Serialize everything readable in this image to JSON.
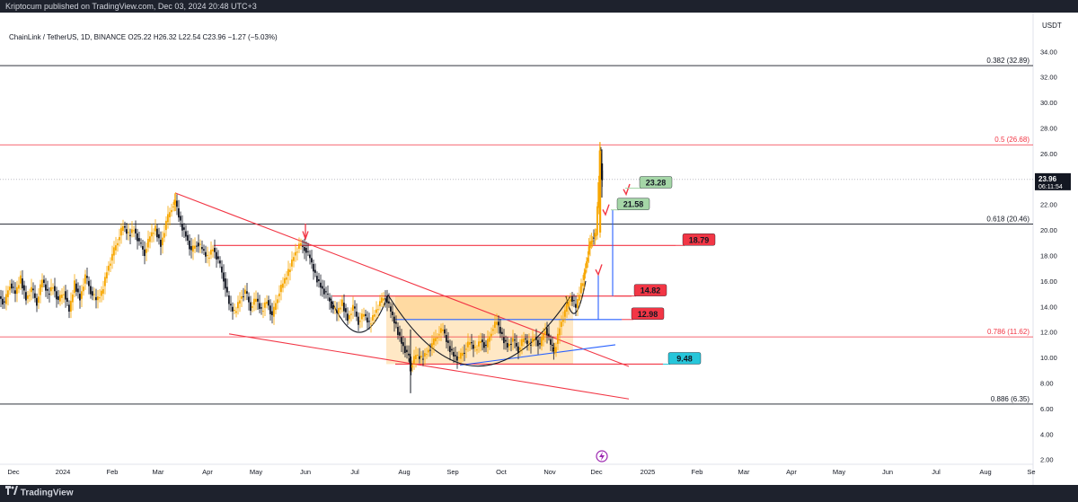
{
  "header": {
    "publish_line": "Kriptocum published on TradingView.com, Dec 03, 2024 20:48 UTC+3"
  },
  "footer": {
    "brand": "TradingView"
  },
  "chart_data": {
    "type": "candlestick",
    "symbol_line": "ChainLink / TetherUS, 1D, BINANCE O25.22 H26.32 L22.54 C23.96 −1.27 (−5.03%)",
    "ohlc": {
      "open": 25.22,
      "high": 26.32,
      "low": 22.54,
      "close": 23.96,
      "change": -1.27,
      "change_pct": -5.03
    },
    "currency": "USDT",
    "last_price": "23.96",
    "countdown": "06:11:54",
    "ylim": [
      2,
      34
    ],
    "y_ticks": [
      "34.00",
      "32.00",
      "30.00",
      "28.00",
      "26.00",
      "24.00",
      "22.00",
      "20.00",
      "18.00",
      "16.00",
      "14.00",
      "12.00",
      "10.00",
      "8.00",
      "6.00",
      "4.00",
      "2.00"
    ],
    "x_ticks": [
      "Dec",
      "2024",
      "Feb",
      "Mar",
      "Apr",
      "May",
      "Jun",
      "Jul",
      "Aug",
      "Sep",
      "Oct",
      "Nov",
      "Dec",
      "2025",
      "Feb",
      "Mar",
      "Apr",
      "May",
      "Jun",
      "Jul",
      "Aug",
      "Se"
    ],
    "fib_levels": [
      {
        "label": "0.382 (32.89)",
        "value": 32.89,
        "color": "#131722"
      },
      {
        "label": "0.5 (26.68)",
        "value": 26.68,
        "color": "#f23645"
      },
      {
        "label": "0.618 (20.46)",
        "value": 20.46,
        "color": "#131722"
      },
      {
        "label": "0.786 (11.62)",
        "value": 11.62,
        "color": "#f23645"
      },
      {
        "label": "0.886 (6.35)",
        "value": 6.35,
        "color": "#131722"
      }
    ],
    "price_labels": [
      {
        "text": "23.28",
        "value": 23.28,
        "color": "#a5d6a7"
      },
      {
        "text": "21.58",
        "value": 21.58,
        "color": "#a5d6a7"
      },
      {
        "text": "18.79",
        "value": 18.79,
        "color": "#f23645"
      },
      {
        "text": "14.82",
        "value": 14.82,
        "color": "#f23645"
      },
      {
        "text": "12.98",
        "value": 12.98,
        "color": "#f23645"
      },
      {
        "text": "9.48",
        "value": 9.48,
        "color": "#26c6da"
      }
    ],
    "price_path": [
      [
        0,
        14.8
      ],
      [
        6,
        14.2
      ],
      [
        12,
        15.8
      ],
      [
        18,
        15.0
      ],
      [
        24,
        16.2
      ],
      [
        30,
        14.6
      ],
      [
        36,
        15.4
      ],
      [
        42,
        14.3
      ],
      [
        48,
        16.1
      ],
      [
        54,
        15.0
      ],
      [
        60,
        15.6
      ],
      [
        66,
        14.4
      ],
      [
        72,
        15.2
      ],
      [
        78,
        13.6
      ],
      [
        84,
        15.8
      ],
      [
        90,
        14.6
      ],
      [
        96,
        16.4
      ],
      [
        102,
        15.2
      ],
      [
        108,
        14.5
      ],
      [
        114,
        15.0
      ],
      [
        120,
        16.8
      ],
      [
        126,
        18.0
      ],
      [
        132,
        19.2
      ],
      [
        138,
        20.3
      ],
      [
        144,
        19.6
      ],
      [
        150,
        20.1
      ],
      [
        156,
        19.0
      ],
      [
        162,
        18.2
      ],
      [
        168,
        19.5
      ],
      [
        174,
        20.1
      ],
      [
        180,
        18.8
      ],
      [
        186,
        20.6
      ],
      [
        192,
        21.8
      ],
      [
        196,
        22.3
      ],
      [
        202,
        20.5
      ],
      [
        208,
        19.6
      ],
      [
        214,
        18.3
      ],
      [
        220,
        19.0
      ],
      [
        226,
        18.5
      ],
      [
        232,
        17.8
      ],
      [
        238,
        18.6
      ],
      [
        244,
        17.6
      ],
      [
        250,
        16.2
      ],
      [
        256,
        14.2
      ],
      [
        262,
        13.5
      ],
      [
        268,
        14.6
      ],
      [
        274,
        15.2
      ],
      [
        280,
        13.9
      ],
      [
        286,
        14.6
      ],
      [
        292,
        13.6
      ],
      [
        298,
        14.5
      ],
      [
        304,
        13.2
      ],
      [
        310,
        14.8
      ],
      [
        316,
        15.8
      ],
      [
        322,
        16.7
      ],
      [
        328,
        18.0
      ],
      [
        334,
        18.8
      ],
      [
        340,
        18.6
      ],
      [
        346,
        17.8
      ],
      [
        352,
        16.4
      ],
      [
        358,
        15.6
      ],
      [
        364,
        15.0
      ],
      [
        370,
        14.1
      ],
      [
        376,
        13.5
      ],
      [
        382,
        14.3
      ],
      [
        388,
        13.0
      ],
      [
        394,
        14.0
      ],
      [
        400,
        12.8
      ],
      [
        406,
        13.4
      ],
      [
        412,
        12.6
      ],
      [
        418,
        13.5
      ],
      [
        424,
        14.3
      ],
      [
        430,
        14.8
      ],
      [
        436,
        13.6
      ],
      [
        442,
        12.4
      ],
      [
        448,
        11.2
      ],
      [
        454,
        10.3
      ],
      [
        458,
        9.2
      ],
      [
        464,
        10.2
      ],
      [
        470,
        9.9
      ],
      [
        476,
        10.4
      ],
      [
        482,
        11.0
      ],
      [
        488,
        11.8
      ],
      [
        494,
        12.2
      ],
      [
        500,
        10.9
      ],
      [
        506,
        10.2
      ],
      [
        512,
        9.9
      ],
      [
        518,
        10.6
      ],
      [
        524,
        11.2
      ],
      [
        530,
        10.6
      ],
      [
        536,
        11.4
      ],
      [
        542,
        10.8
      ],
      [
        548,
        12.1
      ],
      [
        554,
        12.8
      ],
      [
        560,
        11.6
      ],
      [
        566,
        10.9
      ],
      [
        572,
        11.4
      ],
      [
        578,
        10.6
      ],
      [
        584,
        11.5
      ],
      [
        590,
        11.0
      ],
      [
        596,
        11.6
      ],
      [
        602,
        10.9
      ],
      [
        608,
        12.3
      ],
      [
        614,
        11.0
      ],
      [
        618,
        10.4
      ],
      [
        624,
        12.4
      ],
      [
        630,
        13.6
      ],
      [
        636,
        14.8
      ],
      [
        642,
        13.9
      ],
      [
        648,
        15.6
      ],
      [
        652,
        17.0
      ],
      [
        656,
        18.6
      ],
      [
        660,
        19.4
      ],
      [
        664,
        19.6
      ],
      [
        668,
        26.0
      ],
      [
        670,
        24.0
      ]
    ]
  }
}
